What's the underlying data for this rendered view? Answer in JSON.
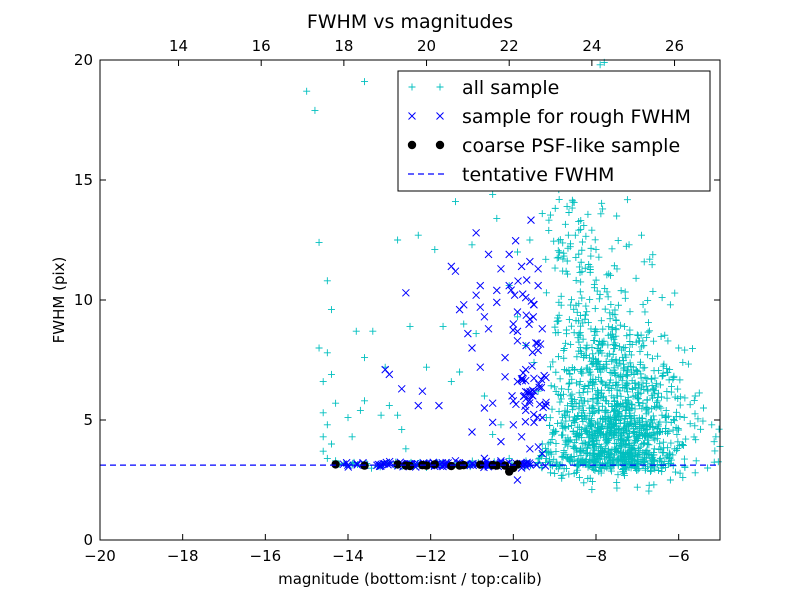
{
  "chart_data": {
    "type": "scatter",
    "title": "FWHM vs magnitudes",
    "xlabel": "magnitude (bottom:isnt / top:calib)",
    "ylabel": "FWHM (pix)",
    "xlim": [
      -20,
      -5
    ],
    "ylim": [
      0,
      20
    ],
    "x_ticks": [
      -20,
      -18,
      -16,
      -14,
      -12,
      -10,
      -8,
      -6
    ],
    "x_tick_labels": [
      "−20",
      "−18",
      "−16",
      "−14",
      "−12",
      "−10",
      "−8",
      "−6"
    ],
    "y_ticks": [
      0,
      5,
      10,
      15,
      20
    ],
    "y_tick_labels": [
      "0",
      "5",
      "10",
      "15",
      "20"
    ],
    "top_axis": {
      "offset": 32.1,
      "ticks": [
        14,
        16,
        18,
        20,
        22,
        24,
        26
      ],
      "tick_labels": [
        "14",
        "16",
        "18",
        "20",
        "22",
        "24",
        "26"
      ]
    },
    "legend_position": "top-right",
    "colors": {
      "all": "#00bfbf",
      "rough": "#0000ff",
      "coarse": "#000000",
      "tentative": "#0000ff"
    },
    "series": [
      {
        "name": "all sample",
        "marker": "plus",
        "points": [
          [
            -15.0,
            18.7
          ],
          [
            -14.8,
            17.9
          ],
          [
            -14.7,
            12.4
          ],
          [
            -14.5,
            10.8
          ],
          [
            -14.4,
            9.6
          ],
          [
            -14.7,
            8.0
          ],
          [
            -14.5,
            7.8
          ],
          [
            -14.6,
            6.6
          ],
          [
            -14.4,
            6.9
          ],
          [
            -14.3,
            5.7
          ],
          [
            -14.6,
            5.3
          ],
          [
            -14.5,
            4.8
          ],
          [
            -14.6,
            4.3
          ],
          [
            -14.4,
            4.0
          ],
          [
            -14.6,
            3.7
          ],
          [
            -14.5,
            3.4
          ],
          [
            -14.3,
            3.3
          ],
          [
            -14.1,
            3.2
          ],
          [
            -13.8,
            8.7
          ],
          [
            -13.4,
            8.7
          ],
          [
            -13.6,
            7.6
          ],
          [
            -13.7,
            5.4
          ],
          [
            -13.6,
            5.8
          ],
          [
            -14.0,
            5.1
          ],
          [
            -13.9,
            4.3
          ],
          [
            -13.2,
            5.2
          ],
          [
            -13.0,
            5.6
          ],
          [
            -13.1,
            7.2
          ],
          [
            -12.8,
            5.2
          ],
          [
            -12.7,
            4.6
          ],
          [
            -12.6,
            3.8
          ],
          [
            -12.8,
            12.5
          ],
          [
            -12.3,
            12.7
          ],
          [
            -12.5,
            8.9
          ],
          [
            -12.1,
            7.2
          ],
          [
            -11.9,
            12.1
          ],
          [
            -11.7,
            8.9
          ],
          [
            -11.5,
            6.6
          ],
          [
            -11.3,
            7.0
          ],
          [
            -11.4,
            14.1
          ],
          [
            -11.0,
            12.3
          ],
          [
            -11.2,
            9.0
          ],
          [
            -10.9,
            8.6
          ],
          [
            -10.7,
            6.0
          ],
          [
            -10.5,
            4.4
          ],
          [
            -10.3,
            4.8
          ],
          [
            -10.1,
            3.4
          ],
          [
            -10.5,
            14.4
          ],
          [
            -10.4,
            13.4
          ],
          [
            -10.1,
            10.6
          ],
          [
            -9.9,
            9.3
          ],
          [
            -9.7,
            8.1
          ],
          [
            -9.5,
            7.4
          ],
          [
            -13.6,
            19.1
          ],
          [
            -9.9,
            12.0
          ],
          [
            -9.6,
            12.5
          ],
          [
            -9.3,
            13.6
          ],
          [
            -9.2,
            10.3
          ],
          [
            -9.4,
            6.2
          ],
          [
            -9.2,
            5.1
          ],
          [
            -9.3,
            4.0
          ],
          [
            -9.2,
            3.4
          ],
          [
            -8.9,
            14.6
          ],
          [
            -8.8,
            16.0
          ],
          [
            -8.7,
            13.9
          ],
          [
            -8.6,
            15.7
          ],
          [
            -8.4,
            16.3
          ],
          [
            -8.2,
            17.8
          ],
          [
            -8.1,
            18.5
          ],
          [
            -7.9,
            19.8
          ],
          [
            -7.8,
            19.9
          ],
          [
            -7.7,
            16.8
          ],
          [
            -7.6,
            14.9
          ],
          [
            -7.4,
            16.4
          ],
          [
            -8.5,
            12.7
          ],
          [
            -8.0,
            12.1
          ],
          [
            -7.5,
            13.5
          ],
          [
            -7.2,
            12.3
          ],
          [
            -6.9,
            12.7
          ],
          [
            -6.7,
            11.7
          ],
          [
            -6.4,
            10.1
          ],
          [
            -6.2,
            9.8
          ],
          [
            -6.0,
            8.0
          ],
          [
            -5.9,
            7.4
          ],
          [
            -5.6,
            6.0
          ],
          [
            -5.4,
            5.5
          ],
          [
            -5.2,
            4.8
          ],
          [
            -5.1,
            4.3
          ],
          [
            -5.0,
            3.9
          ],
          [
            -5.3,
            3.0
          ],
          [
            -5.6,
            2.8
          ],
          [
            -5.9,
            2.6
          ],
          [
            -6.2,
            2.5
          ],
          [
            -6.6,
            2.3
          ],
          [
            -7.0,
            2.2
          ],
          [
            -7.5,
            2.4
          ],
          [
            -8.1,
            2.1
          ],
          [
            -8.4,
            2.6
          ],
          [
            -8.8,
            2.7
          ],
          [
            -9.1,
            2.8
          ]
        ],
        "clusters": [
          {
            "x_range": [
              -9.2,
              -5.0
            ],
            "center_x": -7.5,
            "center_y": 4.8,
            "sx": 0.85,
            "sy": 1.6,
            "count": 900
          },
          {
            "x_range": [
              -9.4,
              -5.0
            ],
            "center_x": -7.8,
            "center_y": 3.3,
            "sx": 1.2,
            "sy": 0.25,
            "count": 300
          },
          {
            "x_range": [
              -9.0,
              -6.0
            ],
            "center_x": -8.0,
            "center_y": 8.5,
            "sx": 0.7,
            "sy": 2.2,
            "count": 250
          },
          {
            "x_range": [
              -9.3,
              -8.0
            ],
            "center_x": -8.6,
            "center_y": 12.5,
            "sx": 0.4,
            "sy": 2.2,
            "count": 60
          },
          {
            "x_range": [
              -14.5,
              -9.3
            ],
            "center_x": -11.8,
            "center_y": 3.15,
            "sx": 1.4,
            "sy": 0.06,
            "count": 90
          }
        ]
      },
      {
        "name": "sample for rough FWHM",
        "marker": "x",
        "points": [
          [
            -13.1,
            7.1
          ],
          [
            -13.0,
            6.9
          ],
          [
            -12.7,
            6.3
          ],
          [
            -12.6,
            10.3
          ],
          [
            -12.3,
            5.6
          ],
          [
            -12.2,
            6.2
          ],
          [
            -11.8,
            5.6
          ],
          [
            -11.5,
            11.4
          ],
          [
            -11.4,
            11.2
          ],
          [
            -11.3,
            9.6
          ],
          [
            -11.2,
            9.8
          ],
          [
            -11.1,
            8.6
          ],
          [
            -11.0,
            8.0
          ],
          [
            -11.0,
            4.5
          ],
          [
            -10.9,
            12.8
          ],
          [
            -10.9,
            10.2
          ],
          [
            -10.8,
            10.6
          ],
          [
            -10.8,
            9.7
          ],
          [
            -10.8,
            7.2
          ],
          [
            -10.7,
            5.5
          ],
          [
            -10.7,
            9.3
          ],
          [
            -10.6,
            11.9
          ],
          [
            -10.6,
            8.8
          ],
          [
            -10.5,
            5.7
          ],
          [
            -10.5,
            4.9
          ],
          [
            -10.4,
            9.9
          ],
          [
            -10.4,
            10.4
          ],
          [
            -10.3,
            11.3
          ],
          [
            -10.3,
            4.1
          ],
          [
            -10.2,
            6.8
          ],
          [
            -10.2,
            7.6
          ],
          [
            -10.1,
            10.6
          ],
          [
            -10.1,
            11.9
          ],
          [
            -10.0,
            9.0
          ],
          [
            -10.0,
            5.8
          ],
          [
            -10.0,
            4.8
          ],
          [
            -9.9,
            9.5
          ],
          [
            -9.9,
            8.3
          ],
          [
            -9.9,
            6.6
          ],
          [
            -9.8,
            11.4
          ],
          [
            -9.8,
            4.3
          ],
          [
            -9.7,
            10.1
          ],
          [
            -9.7,
            7.1
          ],
          [
            -9.7,
            5.4
          ],
          [
            -9.6,
            11.6
          ],
          [
            -9.6,
            9.2
          ],
          [
            -9.6,
            3.8
          ],
          [
            -9.5,
            9.8
          ],
          [
            -9.5,
            6.2
          ],
          [
            -9.5,
            4.9
          ],
          [
            -9.4,
            11.3
          ],
          [
            -9.4,
            10.6
          ],
          [
            -9.4,
            7.9
          ],
          [
            -9.3,
            8.8
          ],
          [
            -9.3,
            5.1
          ],
          [
            -9.3,
            3.6
          ],
          [
            -9.8,
            3.0
          ],
          [
            -9.9,
            2.5
          ],
          [
            -10.3,
            3.3
          ],
          [
            -10.7,
            3.4
          ],
          [
            -11.4,
            3.3
          ]
        ],
        "clusters": [
          {
            "x_range": [
              -14.2,
              -9.2
            ],
            "center_x": -11.6,
            "center_y": 3.15,
            "sx": 1.5,
            "sy": 0.05,
            "count": 120
          },
          {
            "x_range": [
              -10.1,
              -9.2
            ],
            "center_x": -9.6,
            "center_y": 7.0,
            "sx": 0.3,
            "sy": 2.2,
            "count": 70
          }
        ]
      },
      {
        "name": "coarse PSF-like sample",
        "marker": "dot",
        "points": [
          [
            -14.3,
            3.15
          ],
          [
            -13.6,
            3.1
          ],
          [
            -12.8,
            3.15
          ],
          [
            -12.6,
            3.1
          ],
          [
            -12.5,
            3.08
          ],
          [
            -12.2,
            3.12
          ],
          [
            -12.1,
            3.1
          ],
          [
            -11.9,
            3.15
          ],
          [
            -11.5,
            3.08
          ],
          [
            -11.3,
            3.1
          ],
          [
            -11.2,
            3.12
          ],
          [
            -10.8,
            3.14
          ],
          [
            -10.5,
            3.12
          ],
          [
            -10.4,
            3.1
          ],
          [
            -10.2,
            3.1
          ],
          [
            -10.1,
            2.85
          ],
          [
            -10.0,
            3.0
          ],
          [
            -9.9,
            3.15
          ]
        ]
      },
      {
        "name": "tentative FWHM",
        "line": "dashed",
        "value": 3.12
      }
    ]
  }
}
